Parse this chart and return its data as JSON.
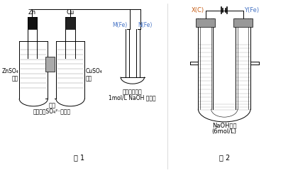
{
  "fig1_label": "图 1",
  "fig2_label": "图 2",
  "zn_label": "Zn",
  "cu_label": "Cu",
  "znso4_label": "ZnSO₄\n溶液",
  "cuso4_label": "CuSO₄\n溶液",
  "membrane_label": "隔膜",
  "membrane_note": "（只允许SO₄²⁻通过）",
  "mfe_label": "M(Fe)",
  "nfe_label": "N(Fe)",
  "filter_label": "滤纸（滴加了",
  "filter_label2": "1mol/L NaOH 溶液）",
  "xc_label": "X(C)",
  "yfe_label": "Y(Fe)",
  "naoh_label": "NaOH溶液",
  "naoh_label2": "(6mol/L)",
  "bg_color": "#ffffff",
  "line_color": "#000000",
  "blue_color": "#4472c4",
  "orange_color": "#c55a11"
}
